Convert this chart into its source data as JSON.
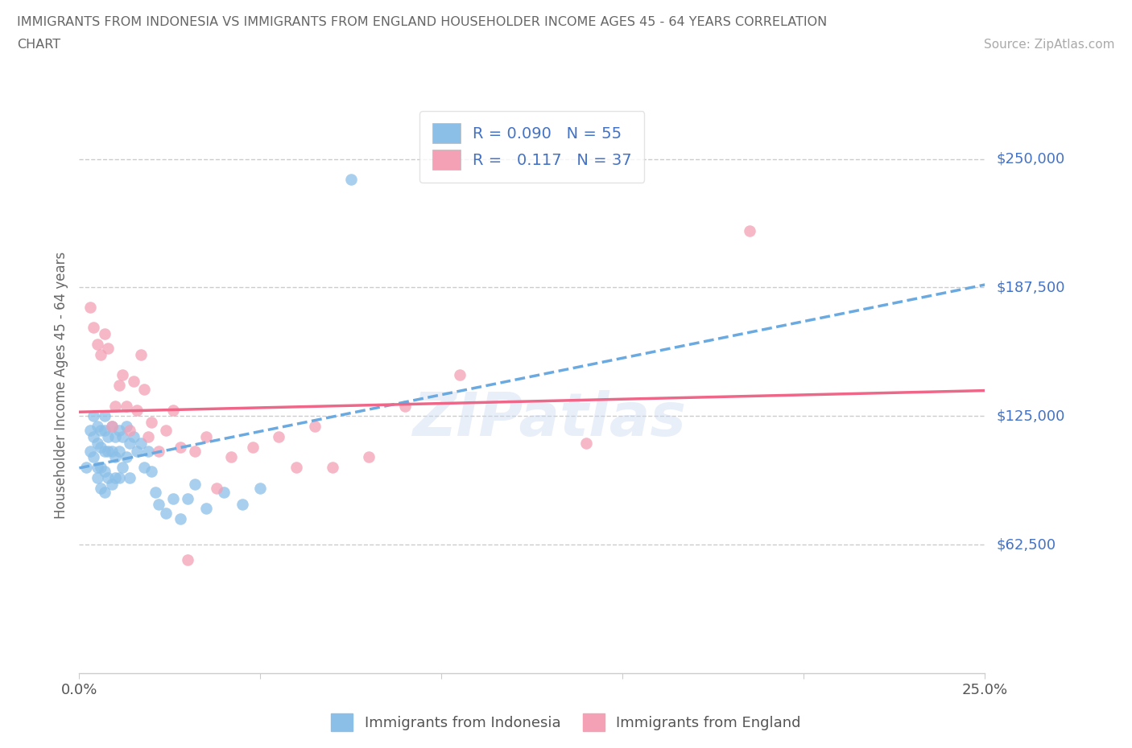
{
  "title_line1": "IMMIGRANTS FROM INDONESIA VS IMMIGRANTS FROM ENGLAND HOUSEHOLDER INCOME AGES 45 - 64 YEARS CORRELATION",
  "title_line2": "CHART",
  "source_text": "Source: ZipAtlas.com",
  "ylabel": "Householder Income Ages 45 - 64 years",
  "xlim": [
    0.0,
    0.25
  ],
  "ylim": [
    0,
    280000
  ],
  "yticks": [
    0,
    62500,
    125000,
    187500,
    250000
  ],
  "ytick_labels": [
    "",
    "$62,500",
    "$125,000",
    "$187,500",
    "$250,000"
  ],
  "xtick_positions": [
    0.0,
    0.05,
    0.1,
    0.15,
    0.2,
    0.25
  ],
  "xtick_labels": [
    "0.0%",
    "",
    "",
    "",
    "",
    "25.0%"
  ],
  "indonesia_color": "#8bbfe8",
  "england_color": "#f4a0b5",
  "indonesia_line_color": "#6aaae0",
  "england_line_color": "#ee6688",
  "R_indonesia": 0.09,
  "N_indonesia": 55,
  "R_england": 0.117,
  "N_england": 37,
  "watermark": "ZIPatlas",
  "grid_color": "#cccccc",
  "axis_color": "#cccccc",
  "label_color": "#4472c4",
  "title_color": "#666666",
  "indonesia_x": [
    0.002,
    0.003,
    0.003,
    0.004,
    0.004,
    0.004,
    0.005,
    0.005,
    0.005,
    0.005,
    0.006,
    0.006,
    0.006,
    0.006,
    0.007,
    0.007,
    0.007,
    0.007,
    0.007,
    0.008,
    0.008,
    0.008,
    0.009,
    0.009,
    0.009,
    0.01,
    0.01,
    0.01,
    0.011,
    0.011,
    0.011,
    0.012,
    0.012,
    0.013,
    0.013,
    0.014,
    0.014,
    0.015,
    0.016,
    0.017,
    0.018,
    0.019,
    0.02,
    0.021,
    0.022,
    0.024,
    0.026,
    0.028,
    0.03,
    0.032,
    0.035,
    0.04,
    0.045,
    0.05,
    0.075
  ],
  "indonesia_y": [
    100000,
    118000,
    108000,
    125000,
    115000,
    105000,
    120000,
    112000,
    100000,
    95000,
    118000,
    110000,
    100000,
    90000,
    125000,
    118000,
    108000,
    98000,
    88000,
    115000,
    108000,
    95000,
    120000,
    108000,
    92000,
    115000,
    105000,
    95000,
    118000,
    108000,
    95000,
    115000,
    100000,
    120000,
    105000,
    112000,
    95000,
    115000,
    108000,
    112000,
    100000,
    108000,
    98000,
    88000,
    82000,
    78000,
    85000,
    75000,
    85000,
    92000,
    80000,
    88000,
    82000,
    90000,
    240000
  ],
  "england_x": [
    0.003,
    0.004,
    0.005,
    0.006,
    0.007,
    0.008,
    0.009,
    0.01,
    0.011,
    0.012,
    0.013,
    0.014,
    0.015,
    0.016,
    0.017,
    0.018,
    0.019,
    0.02,
    0.022,
    0.024,
    0.026,
    0.028,
    0.03,
    0.032,
    0.035,
    0.038,
    0.042,
    0.048,
    0.055,
    0.06,
    0.065,
    0.07,
    0.08,
    0.09,
    0.105,
    0.14,
    0.185
  ],
  "england_y": [
    178000,
    168000,
    160000,
    155000,
    165000,
    158000,
    120000,
    130000,
    140000,
    145000,
    130000,
    118000,
    142000,
    128000,
    155000,
    138000,
    115000,
    122000,
    108000,
    118000,
    128000,
    110000,
    55000,
    108000,
    115000,
    90000,
    105000,
    110000,
    115000,
    100000,
    120000,
    100000,
    105000,
    130000,
    145000,
    112000,
    215000
  ]
}
